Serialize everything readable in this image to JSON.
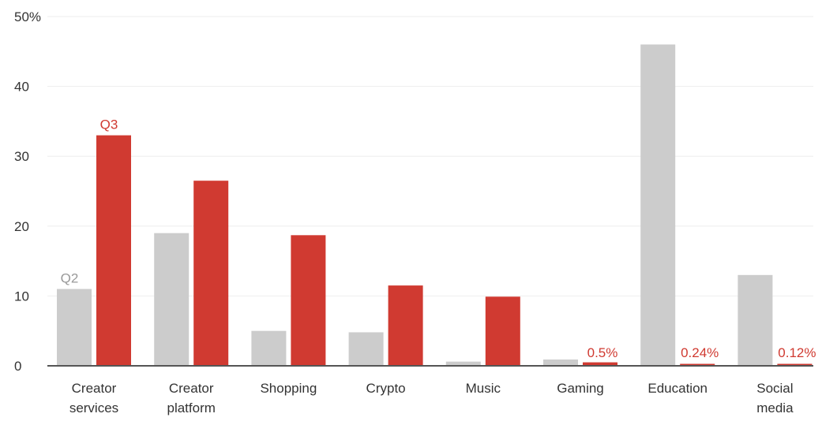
{
  "chart_data": {
    "type": "bar",
    "categories": [
      [
        "Creator",
        "services"
      ],
      [
        "Creator",
        "platform"
      ],
      [
        "Shopping"
      ],
      [
        "Crypto"
      ],
      [
        "Music"
      ],
      [
        "Gaming"
      ],
      [
        "Education"
      ],
      [
        "Social",
        "media"
      ]
    ],
    "series": [
      {
        "name": "Q2",
        "color": "#cccccc",
        "label_color": "#999999",
        "values": [
          11,
          19,
          5,
          4.8,
          0.6,
          0.9,
          46,
          13
        ]
      },
      {
        "name": "Q3",
        "color": "#d03a31",
        "label_color": "#d03a31",
        "values": [
          33,
          26.5,
          18.7,
          11.5,
          9.9,
          0.5,
          0.24,
          0.12
        ]
      }
    ],
    "data_labels": [
      {
        "series": 1,
        "category": 5,
        "text": "0.5%"
      },
      {
        "series": 1,
        "category": 6,
        "text": "0.24%"
      },
      {
        "series": 1,
        "category": 7,
        "text": "0.12%"
      }
    ],
    "series_label_positions": [
      {
        "series": 0,
        "category": 0
      },
      {
        "series": 1,
        "category": 0
      }
    ],
    "y_ticks": [
      {
        "value": 0,
        "label": "0"
      },
      {
        "value": 10,
        "label": "10"
      },
      {
        "value": 20,
        "label": "20"
      },
      {
        "value": 30,
        "label": "30"
      },
      {
        "value": 40,
        "label": "40"
      },
      {
        "value": 50,
        "label": "50%"
      }
    ],
    "ylim": [
      0,
      50
    ],
    "grid": true,
    "title": "",
    "xlabel": "",
    "ylabel": "",
    "colors": {
      "grid": "#eeeeee",
      "axis": "#555555",
      "text": "#333333"
    }
  }
}
